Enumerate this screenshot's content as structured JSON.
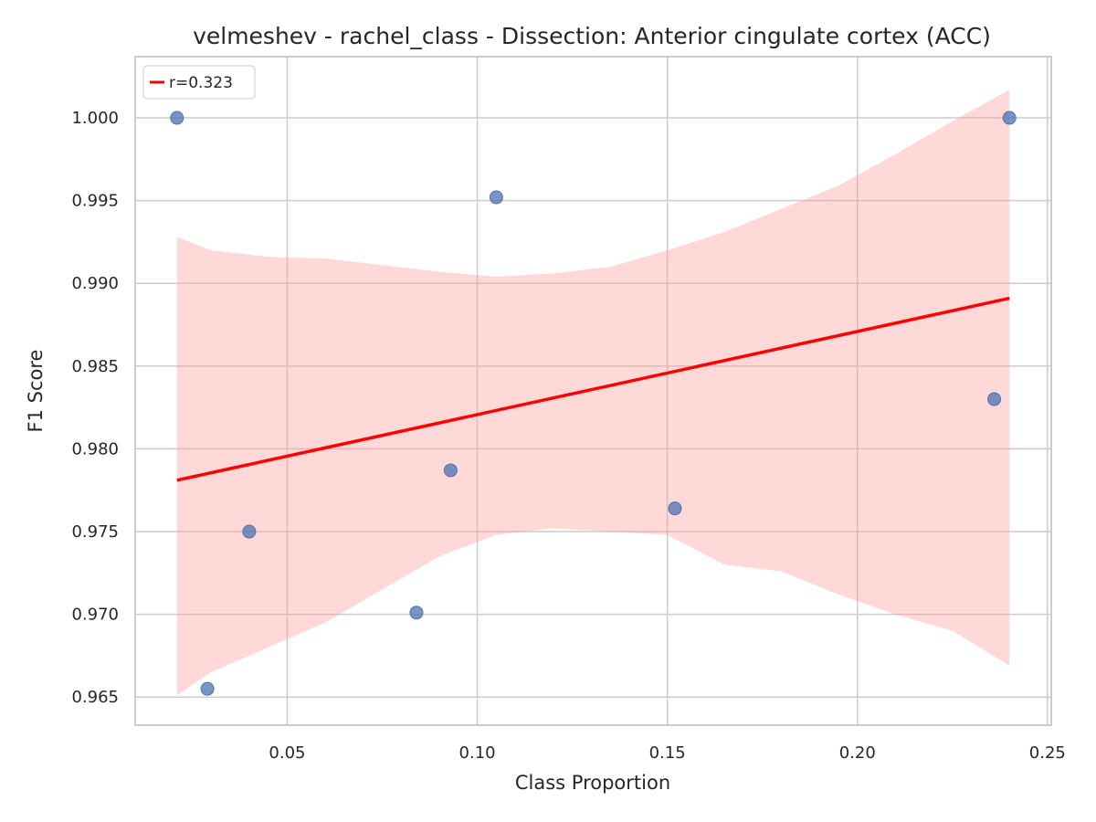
{
  "chart_data": {
    "type": "scatter",
    "title": "velmeshev - rachel_class - Dissection: Anterior cingulate cortex (ACC)",
    "xlabel": "Class Proportion",
    "ylabel": "F1 Score",
    "xlim": [
      0.01,
      0.251
    ],
    "ylim": [
      0.9633,
      1.0037
    ],
    "xticks": [
      0.05,
      0.1,
      0.15,
      0.2,
      0.25
    ],
    "xtick_labels": [
      "0.05",
      "0.10",
      "0.15",
      "0.20",
      "0.25"
    ],
    "yticks": [
      0.965,
      0.97,
      0.975,
      0.98,
      0.985,
      0.99,
      0.995,
      1.0
    ],
    "ytick_labels": [
      "0.965",
      "0.970",
      "0.975",
      "0.980",
      "0.985",
      "0.990",
      "0.995",
      "1.000"
    ],
    "grid": true,
    "legend": {
      "position": "top-left",
      "entries": [
        "r=0.323"
      ]
    },
    "points": [
      {
        "x": 0.021,
        "y": 1.0
      },
      {
        "x": 0.029,
        "y": 0.9655
      },
      {
        "x": 0.04,
        "y": 0.975
      },
      {
        "x": 0.084,
        "y": 0.9701
      },
      {
        "x": 0.093,
        "y": 0.9787
      },
      {
        "x": 0.105,
        "y": 0.9952
      },
      {
        "x": 0.152,
        "y": 0.9764
      },
      {
        "x": 0.236,
        "y": 0.983
      },
      {
        "x": 0.24,
        "y": 1.0
      }
    ],
    "regression_line": {
      "x": [
        0.021,
        0.24
      ],
      "y": [
        0.9781,
        0.9891
      ],
      "label": "r=0.323"
    },
    "confidence_band": {
      "x": [
        0.021,
        0.03,
        0.045,
        0.06,
        0.075,
        0.09,
        0.105,
        0.12,
        0.135,
        0.15,
        0.165,
        0.18,
        0.195,
        0.21,
        0.225,
        0.24
      ],
      "upper": [
        0.9928,
        0.992,
        0.9916,
        0.9915,
        0.9911,
        0.9907,
        0.9904,
        0.9906,
        0.991,
        0.992,
        0.9931,
        0.9945,
        0.9959,
        0.9978,
        0.9998,
        1.0017
      ],
      "lower": [
        0.9651,
        0.9665,
        0.968,
        0.9695,
        0.9715,
        0.9735,
        0.9748,
        0.9752,
        0.975,
        0.9748,
        0.973,
        0.9726,
        0.9712,
        0.97,
        0.969,
        0.9669
      ]
    },
    "colors": {
      "points": "#4c72b0",
      "line": "#ff0000",
      "band": "#ff9999",
      "grid": "#cccccc",
      "spine": "#cccccc",
      "text": "#262626"
    }
  }
}
